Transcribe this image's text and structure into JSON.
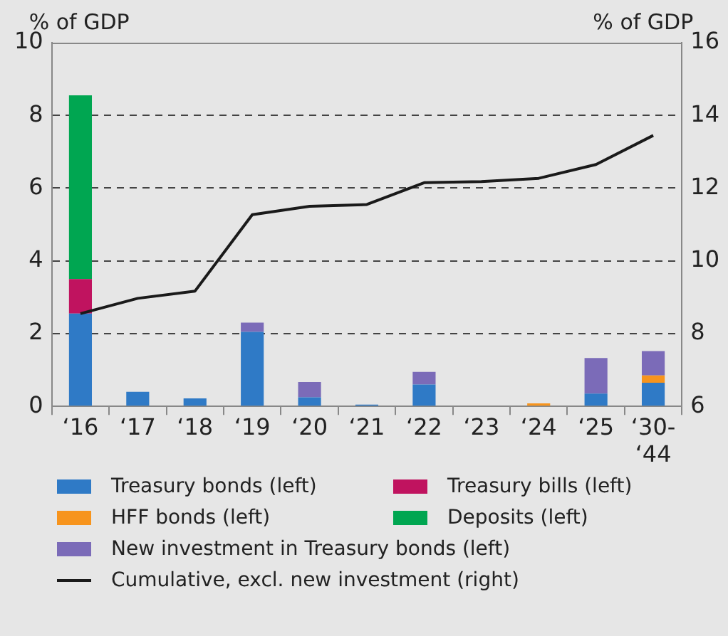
{
  "chart_data": {
    "type": "bar",
    "stacked": true,
    "ylabel": "% of GDP",
    "y2label": "% of GDP",
    "categories": [
      "‘16",
      "‘17",
      "‘18",
      "‘19",
      "‘20",
      "‘21",
      "‘22",
      "‘23",
      "‘24",
      "‘25",
      "‘30-‘44"
    ],
    "series": [
      {
        "name": "Treasury bonds (left)",
        "color": "#2f7ac6",
        "values": [
          2.55,
          0.4,
          0.22,
          2.05,
          0.25,
          0.05,
          0.6,
          null,
          null,
          0.35,
          0.65
        ]
      },
      {
        "name": "Treasury bills (left)",
        "color": "#c0135f",
        "values": [
          0.95,
          null,
          null,
          null,
          null,
          null,
          null,
          null,
          null,
          null,
          null
        ]
      },
      {
        "name": "HFF bonds (left)",
        "color": "#f7941d",
        "values": [
          null,
          null,
          null,
          null,
          null,
          null,
          null,
          null,
          0.08,
          null,
          0.2
        ]
      },
      {
        "name": "Deposits (left)",
        "color": "#00a651",
        "values": [
          5.05,
          null,
          null,
          null,
          null,
          null,
          null,
          null,
          null,
          null,
          null
        ]
      },
      {
        "name": "New investment in Treasury bonds (left)",
        "color": "#7b6bb8",
        "values": [
          null,
          null,
          null,
          0.25,
          0.42,
          null,
          0.35,
          null,
          null,
          0.98,
          0.67
        ]
      },
      {
        "name": "Cumulative, excl. new investment (right)",
        "type": "line",
        "axis": "y2",
        "color": "#1a1a1a",
        "values": [
          8.55,
          8.97,
          9.17,
          11.27,
          11.5,
          11.55,
          12.15,
          12.18,
          12.27,
          12.65,
          13.45
        ]
      }
    ],
    "ylim": [
      0,
      10
    ],
    "yticks": [
      0,
      2,
      4,
      6,
      8,
      10
    ],
    "y2lim": [
      6,
      16
    ],
    "y2ticks": [
      6,
      8,
      10,
      12,
      14,
      16
    ],
    "grid": "y",
    "legend": "bottom",
    "line_style": "solid",
    "marker": "none"
  }
}
